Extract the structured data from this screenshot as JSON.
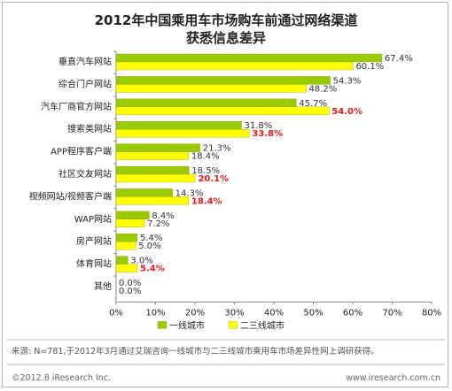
{
  "chart_data": {
    "type": "bar",
    "title": [
      "2012年中国乘用车市场购车前通过网络渠道",
      "获悉信息差异"
    ],
    "categories": [
      "垂直汽车网站",
      "综合门户网站",
      "汽车厂商官方网站",
      "搜索类网站",
      "APP程序客户端",
      "社区交友网站",
      "视频网站/视频客户端",
      "WAP网站",
      "房产网站",
      "体育网站",
      "其他"
    ],
    "series": [
      {
        "name": "一线城市",
        "color": "#99cc00",
        "values": [
          67.4,
          54.3,
          45.7,
          31.8,
          21.3,
          18.5,
          14.3,
          8.4,
          5.4,
          3.0,
          0.0
        ]
      },
      {
        "name": "二三线城市",
        "color": "#ffff00",
        "values": [
          60.1,
          48.2,
          54.0,
          33.8,
          18.4,
          20.1,
          18.4,
          7.2,
          5.0,
          5.4,
          0.0
        ]
      }
    ],
    "highlight_series2": [
      false,
      false,
      true,
      true,
      false,
      true,
      true,
      false,
      false,
      true,
      false
    ],
    "xlim": [
      0,
      80
    ],
    "xticks": [
      "0%",
      "10%",
      "20%",
      "30%",
      "40%",
      "50%",
      "60%",
      "70%",
      "80%"
    ],
    "legend_position": "bottom",
    "highlight_color": "#e41a1c"
  },
  "source_note": "来源: N=781,于2012年3月通过艾瑞咨询一线城市与二三线城市乘用车市场差异性网上调研获得。",
  "footer_left": "©2012.8 iResearch Inc.",
  "footer_right": "www.iresearch.com.cn"
}
